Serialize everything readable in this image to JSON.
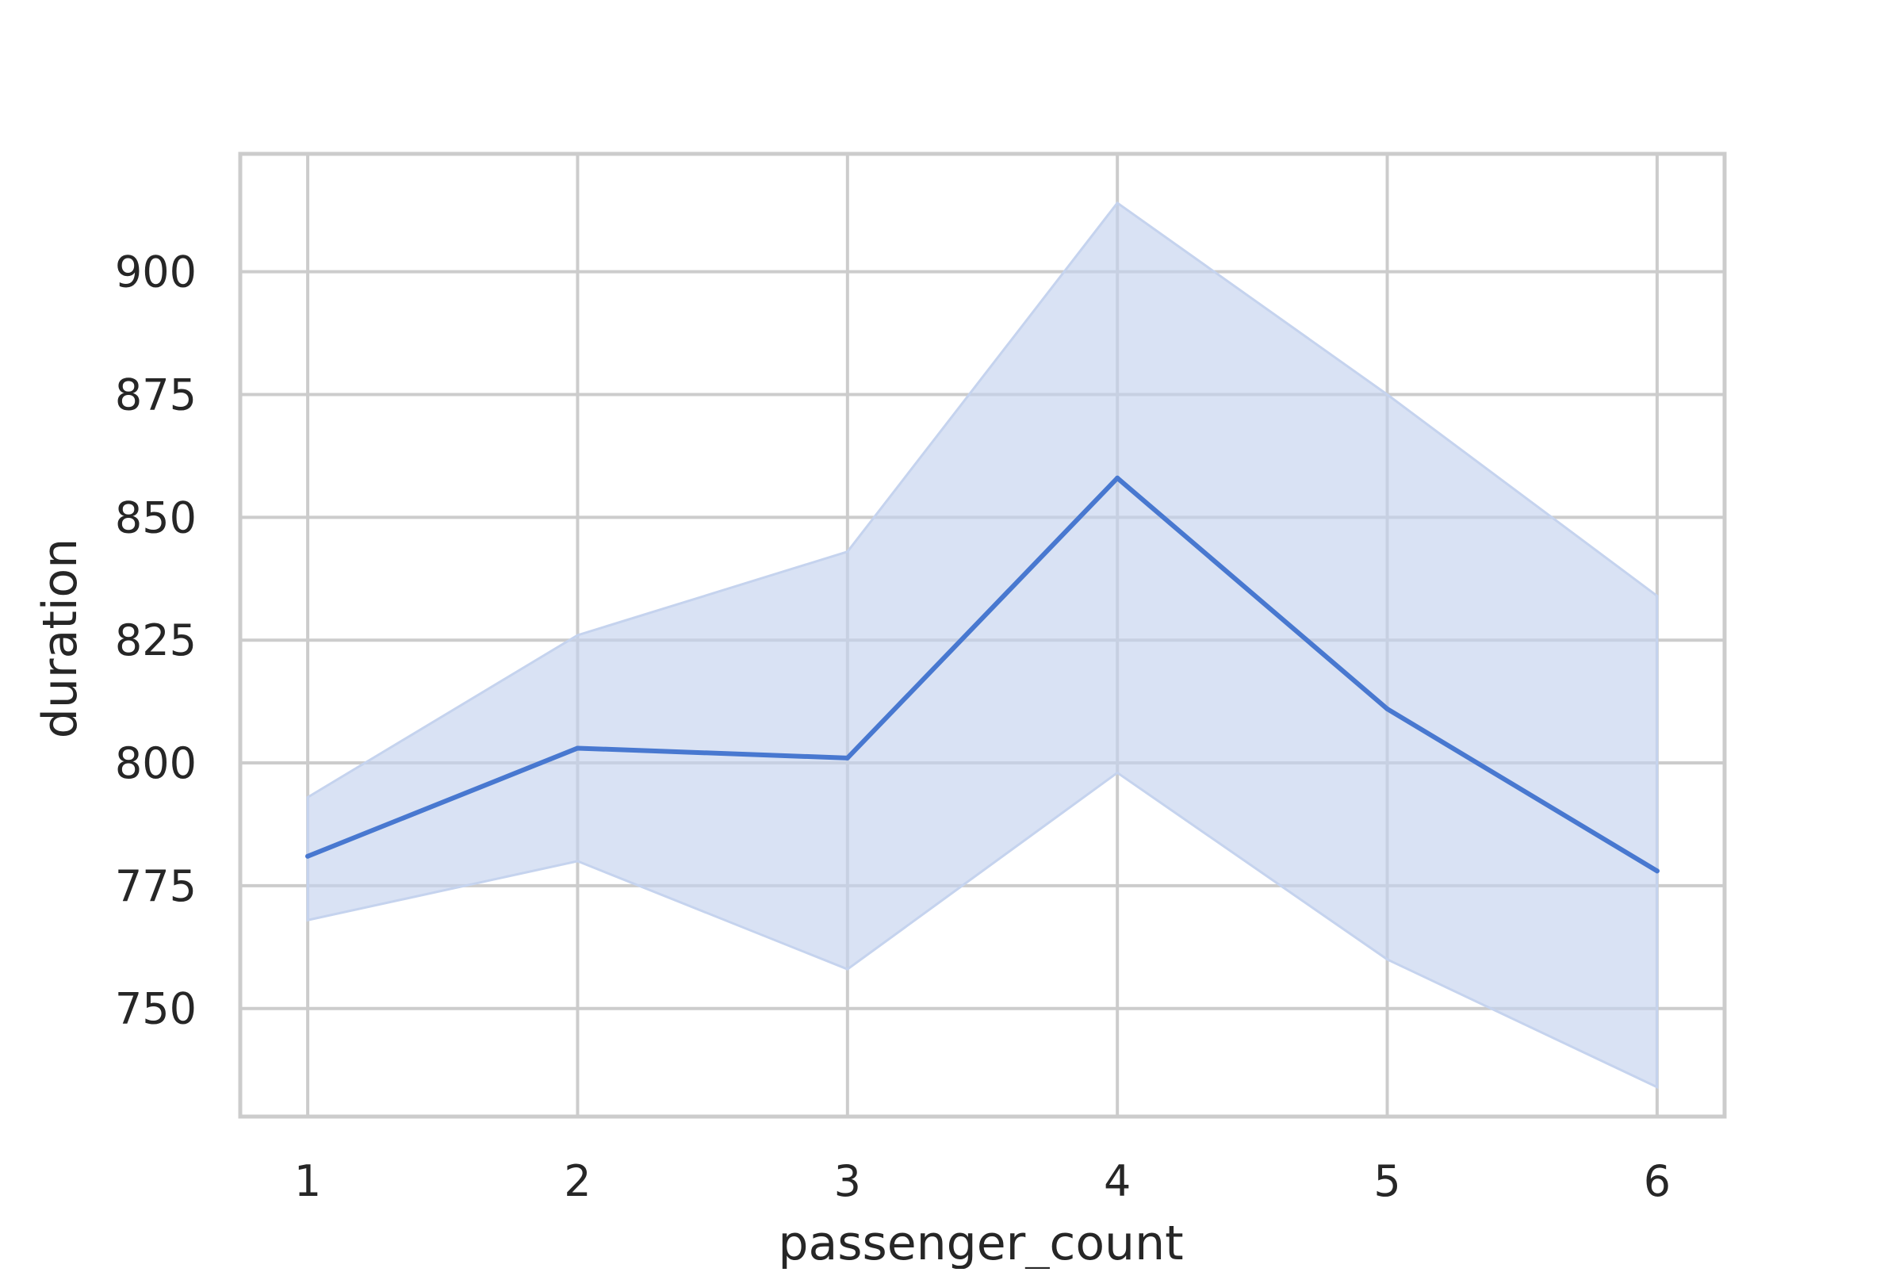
{
  "chart_data": {
    "type": "line",
    "title": "",
    "xlabel": "passenger_count",
    "ylabel": "duration",
    "x": [
      1,
      2,
      3,
      4,
      5,
      6
    ],
    "xticks": [
      "1",
      "2",
      "3",
      "4",
      "5",
      "6"
    ],
    "yticks": [
      750,
      775,
      800,
      825,
      850,
      875,
      900
    ],
    "xlim": [
      0.75,
      6.25
    ],
    "ylim": [
      728,
      924
    ],
    "grid": true,
    "series": [
      {
        "values": [
          781,
          803,
          801,
          858,
          811,
          778
        ],
        "ci_lower": [
          768,
          780,
          758,
          798,
          760,
          734
        ],
        "ci_upper": [
          793,
          826,
          843,
          914,
          875,
          834
        ],
        "color": "#4878d0",
        "band_color": "#c5d3ee"
      }
    ],
    "style": {
      "gridline_color": "#cccccc",
      "text_color": "#262626",
      "background": "#ffffff"
    }
  }
}
